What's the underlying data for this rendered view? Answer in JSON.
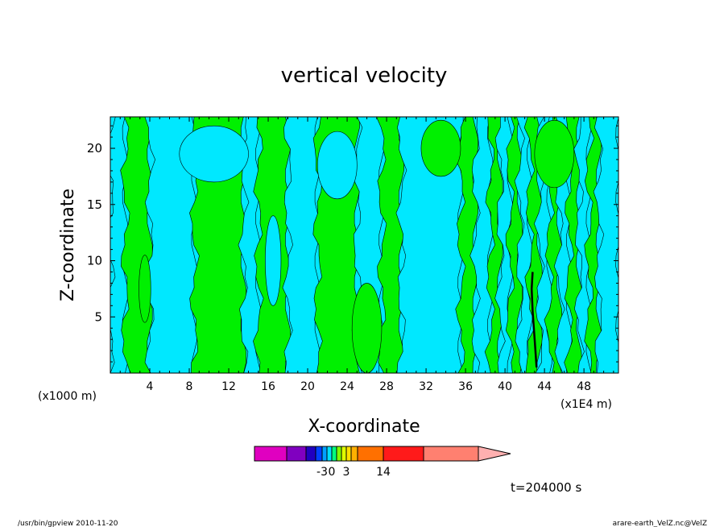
{
  "chart_data": {
    "type": "heatmap",
    "title": "vertical velocity",
    "xlabel": "X-coordinate",
    "ylabel": "Z-coordinate",
    "x_unit_left": "(x1000 m)",
    "x_unit_right": "(x1E4 m)",
    "xlim": [
      0,
      51.5
    ],
    "ylim": [
      0,
      22.8
    ],
    "xticks": [
      4,
      8,
      12,
      16,
      20,
      24,
      28,
      32,
      36,
      40,
      44,
      48
    ],
    "yticks": [
      5,
      10,
      15,
      20
    ],
    "colorbar": {
      "colors": [
        "#e000c0",
        "#8000c0",
        "#2000c0",
        "#0040ff",
        "#00a0ff",
        "#00e0ff",
        "#00ff80",
        "#80ff00",
        "#e0ff00",
        "#ffe000",
        "#ffb000",
        "#ff7000",
        "#ff1a1a",
        "#ff8070",
        "#ffb0b0"
      ],
      "tick_labels": [
        {
          "label": "-3",
          "value": -3
        },
        {
          "label": "0",
          "value": 0
        },
        {
          "label": "3",
          "value": 3
        },
        {
          "label": "14",
          "value": 14
        }
      ]
    },
    "field_colors": {
      "negative": "#00e8ff",
      "positive": "#00f000",
      "strong": "#000000"
    },
    "bands": [
      {
        "x0": 0.0,
        "x1": 1.5,
        "sign": "negative"
      },
      {
        "x0": 1.5,
        "x1": 4.0,
        "sign": "positive"
      },
      {
        "x0": 4.0,
        "x1": 8.5,
        "sign": "negative"
      },
      {
        "x0": 8.5,
        "x1": 13.5,
        "sign": "positive"
      },
      {
        "x0": 13.5,
        "x1": 15.0,
        "sign": "negative"
      },
      {
        "x0": 15.0,
        "x1": 18.0,
        "sign": "positive"
      },
      {
        "x0": 18.0,
        "x1": 21.0,
        "sign": "negative"
      },
      {
        "x0": 21.0,
        "x1": 25.0,
        "sign": "positive"
      },
      {
        "x0": 25.0,
        "x1": 27.5,
        "sign": "negative"
      },
      {
        "x0": 27.5,
        "x1": 29.5,
        "sign": "positive"
      },
      {
        "x0": 29.5,
        "x1": 35.5,
        "sign": "negative"
      },
      {
        "x0": 35.5,
        "x1": 37.0,
        "sign": "positive"
      },
      {
        "x0": 37.0,
        "x1": 38.5,
        "sign": "negative"
      },
      {
        "x0": 38.5,
        "x1": 39.5,
        "sign": "positive"
      },
      {
        "x0": 39.5,
        "x1": 40.5,
        "sign": "negative"
      },
      {
        "x0": 40.5,
        "x1": 41.5,
        "sign": "positive"
      },
      {
        "x0": 41.5,
        "x1": 42.5,
        "sign": "negative"
      },
      {
        "x0": 42.5,
        "x1": 43.5,
        "sign": "positive"
      },
      {
        "x0": 43.5,
        "x1": 44.5,
        "sign": "negative"
      },
      {
        "x0": 44.5,
        "x1": 45.5,
        "sign": "positive"
      },
      {
        "x0": 45.5,
        "x1": 46.5,
        "sign": "negative"
      },
      {
        "x0": 46.5,
        "x1": 47.5,
        "sign": "positive"
      },
      {
        "x0": 47.5,
        "x1": 48.5,
        "sign": "negative"
      },
      {
        "x0": 48.5,
        "x1": 49.5,
        "sign": "positive"
      },
      {
        "x0": 49.5,
        "x1": 51.5,
        "sign": "negative"
      }
    ],
    "blobs": [
      {
        "cx": 10.5,
        "cy": 19.5,
        "rx": 3.5,
        "ry": 2.5,
        "sign": "negative"
      },
      {
        "cx": 26.0,
        "cy": 4.0,
        "rx": 1.5,
        "ry": 4.0,
        "sign": "positive"
      },
      {
        "cx": 23.0,
        "cy": 18.5,
        "rx": 2.0,
        "ry": 3.0,
        "sign": "negative"
      },
      {
        "cx": 33.5,
        "cy": 20.0,
        "rx": 2.0,
        "ry": 2.5,
        "sign": "positive"
      },
      {
        "cx": 16.5,
        "cy": 10.0,
        "rx": 0.8,
        "ry": 4.0,
        "sign": "negative"
      },
      {
        "cx": 3.5,
        "cy": 7.5,
        "rx": 0.6,
        "ry": 3.0,
        "sign": "positive"
      },
      {
        "cx": 45.0,
        "cy": 19.5,
        "rx": 2.0,
        "ry": 3.0,
        "sign": "positive"
      }
    ],
    "strong_line": {
      "x": [
        43.2,
        43.0,
        42.8,
        42.7,
        42.8
      ],
      "y": [
        0.5,
        3.0,
        5.5,
        7.5,
        9.0
      ]
    },
    "annotation": "t=204000 s"
  },
  "footer": {
    "left": "/usr/bin/gpview   2010-11-20",
    "right": "arare-earth_VelZ.nc@VelZ"
  }
}
